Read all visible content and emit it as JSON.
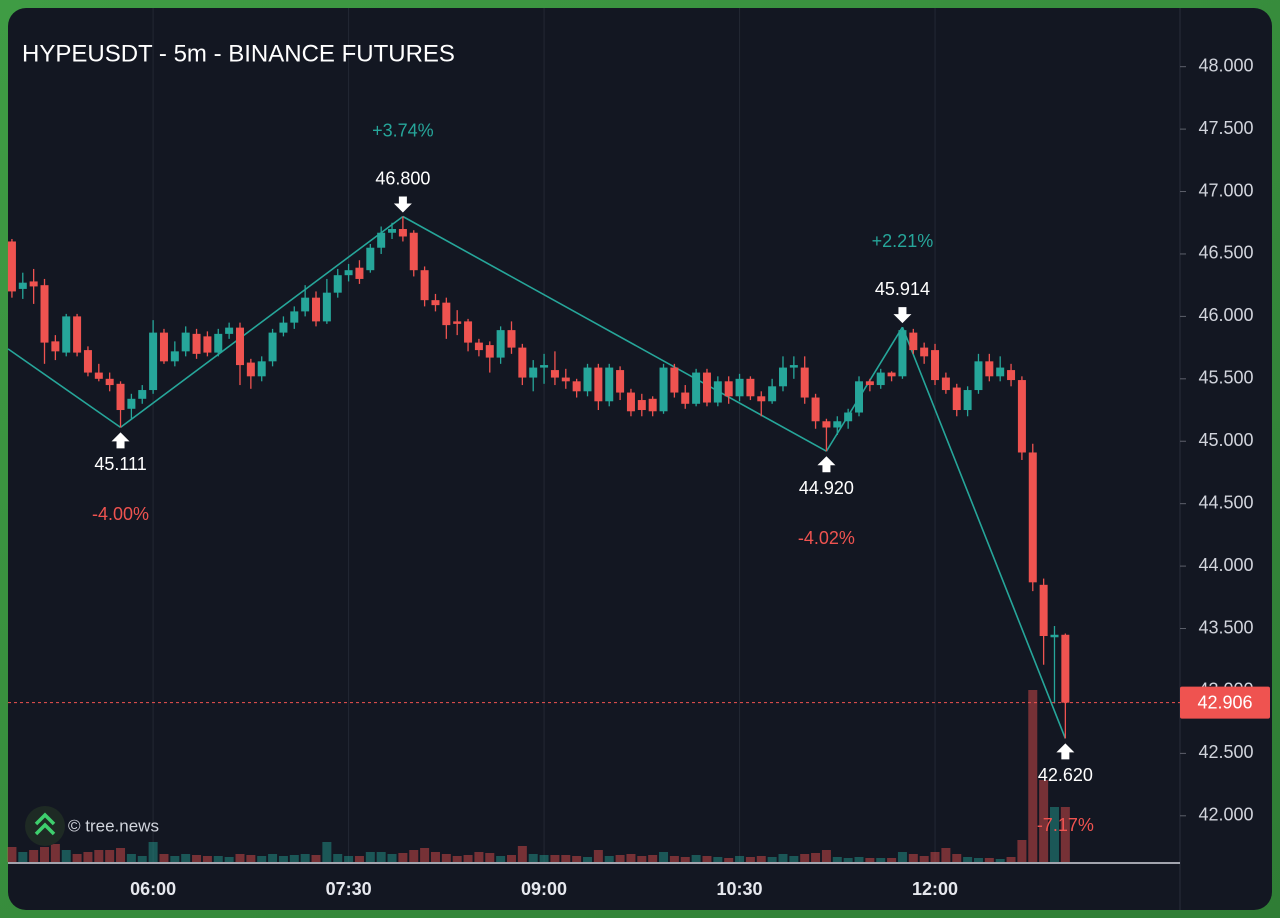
{
  "chart_data": {
    "type": "candlestick",
    "title": "HYPEUSDT - 5m - BINANCE FUTURES",
    "watermark": "© tree.news",
    "up_color": "#26a69a",
    "down_color": "#ef5350",
    "grid": true,
    "x": [
      "04:55",
      "05:00",
      "05:05",
      "05:10",
      "05:15",
      "05:20",
      "05:25",
      "05:30",
      "05:35",
      "05:40",
      "05:45",
      "05:50",
      "05:55",
      "06:00",
      "06:05",
      "06:10",
      "06:15",
      "06:20",
      "06:25",
      "06:30",
      "06:35",
      "06:40",
      "06:45",
      "06:50",
      "06:55",
      "07:00",
      "07:05",
      "07:10",
      "07:15",
      "07:20",
      "07:25",
      "07:30",
      "07:35",
      "07:40",
      "07:45",
      "07:50",
      "07:55",
      "08:00",
      "08:05",
      "08:10",
      "08:15",
      "08:20",
      "08:25",
      "08:30",
      "08:35",
      "08:40",
      "08:45",
      "08:50",
      "08:55",
      "09:00",
      "09:05",
      "09:10",
      "09:15",
      "09:20",
      "09:25",
      "09:30",
      "09:35",
      "09:40",
      "09:45",
      "09:50",
      "09:55",
      "10:00",
      "10:05",
      "10:10",
      "10:15",
      "10:20",
      "10:25",
      "10:30",
      "10:35",
      "10:40",
      "10:45",
      "10:50",
      "10:55",
      "11:00",
      "11:05",
      "11:10",
      "11:15",
      "11:20",
      "11:25",
      "11:30",
      "11:35",
      "11:40",
      "11:45",
      "11:50",
      "11:55",
      "12:00",
      "12:05",
      "12:10",
      "12:15",
      "12:20",
      "12:25",
      "12:30",
      "12:35",
      "12:40",
      "12:45",
      "12:50",
      "12:55",
      "13:00"
    ],
    "open": [
      46.6,
      46.22,
      46.28,
      46.25,
      45.8,
      45.71,
      46.0,
      45.73,
      45.55,
      45.5,
      45.46,
      45.26,
      45.34,
      45.41,
      45.87,
      45.64,
      45.72,
      45.86,
      45.84,
      45.71,
      45.86,
      45.91,
      45.63,
      45.52,
      45.64,
      45.87,
      45.95,
      46.04,
      46.15,
      45.96,
      46.19,
      46.33,
      46.39,
      46.37,
      46.55,
      46.67,
      46.7,
      46.67,
      46.37,
      46.13,
      46.11,
      45.96,
      45.96,
      45.79,
      45.77,
      45.67,
      45.89,
      45.75,
      45.51,
      45.59,
      45.57,
      45.51,
      45.48,
      45.4,
      45.59,
      45.32,
      45.57,
      45.39,
      45.33,
      45.34,
      45.24,
      45.59,
      45.39,
      45.3,
      45.55,
      45.31,
      45.48,
      45.36,
      45.5,
      45.36,
      45.32,
      45.44,
      45.59,
      45.59,
      45.35,
      45.16,
      45.11,
      45.16,
      45.23,
      45.48,
      45.45,
      45.55,
      45.52,
      45.87,
      45.75,
      45.73,
      45.51,
      45.43,
      45.25,
      45.41,
      45.64,
      45.52,
      45.57,
      45.49,
      44.91,
      43.85,
      43.43,
      43.45
    ],
    "high": [
      46.62,
      46.35,
      46.38,
      46.3,
      45.85,
      46.02,
      46.02,
      45.76,
      45.62,
      45.55,
      45.48,
      45.38,
      45.45,
      45.97,
      45.9,
      45.8,
      45.92,
      45.9,
      45.88,
      45.9,
      45.95,
      45.95,
      45.66,
      45.68,
      45.9,
      46.0,
      46.08,
      46.25,
      46.2,
      46.3,
      46.38,
      46.42,
      46.45,
      46.58,
      46.72,
      46.75,
      46.8,
      46.69,
      46.4,
      46.18,
      46.15,
      46.05,
      45.98,
      45.82,
      45.8,
      45.92,
      45.96,
      45.78,
      45.65,
      45.7,
      45.72,
      45.58,
      45.5,
      45.62,
      45.62,
      45.62,
      45.6,
      45.42,
      45.38,
      45.36,
      45.62,
      45.62,
      45.45,
      45.58,
      45.58,
      45.52,
      45.52,
      45.54,
      45.52,
      45.4,
      45.5,
      45.68,
      45.68,
      45.68,
      45.38,
      45.18,
      45.2,
      45.26,
      45.52,
      45.5,
      45.58,
      45.56,
      45.914,
      45.9,
      45.79,
      45.78,
      45.55,
      45.46,
      45.44,
      45.7,
      45.7,
      45.68,
      45.62,
      45.52,
      44.98,
      43.9,
      43.52,
      43.46
    ],
    "low": [
      46.15,
      46.14,
      46.1,
      45.62,
      45.65,
      45.68,
      45.68,
      45.52,
      45.48,
      45.4,
      45.111,
      45.18,
      45.3,
      45.38,
      45.62,
      45.6,
      45.68,
      45.66,
      45.68,
      45.68,
      45.82,
      45.45,
      45.42,
      45.48,
      45.6,
      45.84,
      45.9,
      46.0,
      45.92,
      45.94,
      46.15,
      46.28,
      46.26,
      46.35,
      46.5,
      46.62,
      46.6,
      46.32,
      46.08,
      46.04,
      45.82,
      45.85,
      45.72,
      45.68,
      45.55,
      45.62,
      45.7,
      45.45,
      45.4,
      45.46,
      45.45,
      45.42,
      45.35,
      45.36,
      45.25,
      45.28,
      45.33,
      45.2,
      45.2,
      45.2,
      45.22,
      45.35,
      45.26,
      45.28,
      45.28,
      45.28,
      45.3,
      45.32,
      45.33,
      45.2,
      45.3,
      45.4,
      45.5,
      45.3,
      45.1,
      44.92,
      45.05,
      45.1,
      45.2,
      45.4,
      45.42,
      45.48,
      45.5,
      45.7,
      45.62,
      45.45,
      45.38,
      45.2,
      45.2,
      45.38,
      45.48,
      45.48,
      45.44,
      44.85,
      43.8,
      43.21,
      42.9,
      42.62
    ],
    "close": [
      46.2,
      46.27,
      46.24,
      45.79,
      45.72,
      46.0,
      45.71,
      45.55,
      45.5,
      45.45,
      45.25,
      45.34,
      45.41,
      45.87,
      45.64,
      45.72,
      45.87,
      45.7,
      45.71,
      45.86,
      45.91,
      45.61,
      45.52,
      45.64,
      45.87,
      45.95,
      46.04,
      46.15,
      45.96,
      46.19,
      46.33,
      46.37,
      46.3,
      46.55,
      46.67,
      46.7,
      46.64,
      46.37,
      46.13,
      46.09,
      45.93,
      45.94,
      45.79,
      45.73,
      45.67,
      45.89,
      45.75,
      45.51,
      45.59,
      45.61,
      45.51,
      45.48,
      45.4,
      45.59,
      45.32,
      45.59,
      45.39,
      45.24,
      45.25,
      45.24,
      45.59,
      45.39,
      45.3,
      45.55,
      45.31,
      45.48,
      45.36,
      45.5,
      45.36,
      45.32,
      45.44,
      45.59,
      45.61,
      45.35,
      45.16,
      45.11,
      45.16,
      45.23,
      45.48,
      45.45,
      45.55,
      45.52,
      45.89,
      45.73,
      45.68,
      45.49,
      45.41,
      45.25,
      45.41,
      45.64,
      45.52,
      45.59,
      45.49,
      44.91,
      43.87,
      43.44,
      43.45,
      42.906
    ],
    "volume": [
      15,
      10,
      12,
      15,
      18,
      12,
      8,
      10,
      12,
      12,
      14,
      8,
      6,
      20,
      8,
      6,
      8,
      7,
      6,
      6,
      5,
      8,
      7,
      6,
      8,
      6,
      7,
      8,
      7,
      20,
      8,
      6,
      6,
      10,
      10,
      8,
      9,
      12,
      14,
      10,
      8,
      6,
      7,
      10,
      9,
      6,
      7,
      16,
      8,
      7,
      7,
      7,
      6,
      5,
      12,
      6,
      7,
      8,
      6,
      7,
      10,
      6,
      5,
      7,
      6,
      5,
      4,
      6,
      5,
      6,
      5,
      8,
      6,
      8,
      9,
      12,
      5,
      4,
      5,
      4,
      4,
      4,
      10,
      8,
      6,
      10,
      14,
      8,
      5,
      4,
      4,
      3,
      5,
      22,
      172,
      82,
      55,
      55
    ],
    "ylim": [
      41.63,
      48.47
    ],
    "yticks": [
      {
        "value": 42,
        "label": "42.000"
      },
      {
        "value": 42.5,
        "label": "42.500"
      },
      {
        "value": 43,
        "label": "43.000"
      },
      {
        "value": 43.5,
        "label": "43.500"
      },
      {
        "value": 44,
        "label": "44.000"
      },
      {
        "value": 44.5,
        "label": "44.500"
      },
      {
        "value": 45,
        "label": "45.000"
      },
      {
        "value": 45.5,
        "label": "45.500"
      },
      {
        "value": 46,
        "label": "46.000"
      },
      {
        "value": 46.5,
        "label": "46.500"
      },
      {
        "value": 47,
        "label": "47.000"
      },
      {
        "value": 47.5,
        "label": "47.500"
      },
      {
        "value": 48,
        "label": "48.000"
      }
    ],
    "xticks": [
      "06:00",
      "07:30",
      "09:00",
      "10:30",
      "12:00"
    ],
    "last_price": 42.906,
    "zigzag_start": {
      "x": "04:55",
      "value": 45.74
    },
    "pivots": [
      {
        "x": "05:45",
        "kind": "low",
        "price": 45.111,
        "change": "-4.00%"
      },
      {
        "x": "07:55",
        "kind": "high",
        "price": {
          "value": 46.8,
          "label": "46.800"
        },
        "change": "+3.74%"
      },
      {
        "x": "11:10",
        "kind": "low",
        "price": {
          "value": 44.92,
          "label": "44.920"
        },
        "change": "-4.02%"
      },
      {
        "x": "11:45",
        "kind": "high",
        "price": 45.914,
        "change": "+2.21%"
      },
      {
        "x": "13:00",
        "kind": "low",
        "price": {
          "value": 42.62,
          "label": "42.620"
        },
        "change": "-7.17%"
      }
    ]
  }
}
